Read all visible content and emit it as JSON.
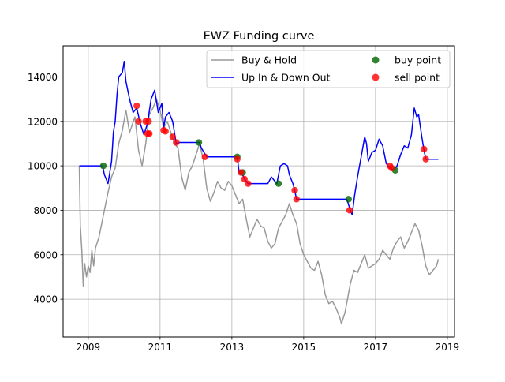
{
  "chart_data": {
    "type": "line",
    "title": "EWZ Funding curve",
    "xlabel": "",
    "ylabel": "",
    "xlim": [
      2008.3,
      2019.2
    ],
    "ylim": [
      2300,
      15400
    ],
    "xticks": [
      2009,
      2011,
      2013,
      2015,
      2017,
      2019
    ],
    "xtick_labels": [
      "2009",
      "2011",
      "2013",
      "2015",
      "2017",
      "2019"
    ],
    "yticks": [
      4000,
      6000,
      8000,
      10000,
      12000,
      14000
    ],
    "ytick_labels": [
      "4000",
      "6000",
      "8000",
      "10000",
      "12000",
      "14000"
    ],
    "grid": true,
    "legend_position": "top-right",
    "series": [
      {
        "name": "Buy & Hold",
        "kind": "line",
        "color": "#999999",
        "points": [
          [
            2008.75,
            10000
          ],
          [
            2008.78,
            7300
          ],
          [
            2008.82,
            6200
          ],
          [
            2008.86,
            4600
          ],
          [
            2008.9,
            5600
          ],
          [
            2008.95,
            5000
          ],
          [
            2009.0,
            5500
          ],
          [
            2009.05,
            5200
          ],
          [
            2009.1,
            6200
          ],
          [
            2009.15,
            5500
          ],
          [
            2009.2,
            6300
          ],
          [
            2009.3,
            6800
          ],
          [
            2009.45,
            8000
          ],
          [
            2009.55,
            8800
          ],
          [
            2009.65,
            9500
          ],
          [
            2009.75,
            9900
          ],
          [
            2009.85,
            11000
          ],
          [
            2009.95,
            11600
          ],
          [
            2010.05,
            12500
          ],
          [
            2010.15,
            11500
          ],
          [
            2010.3,
            12200
          ],
          [
            2010.4,
            10700
          ],
          [
            2010.5,
            10000
          ],
          [
            2010.6,
            11000
          ],
          [
            2010.7,
            12300
          ],
          [
            2010.8,
            12600
          ],
          [
            2010.9,
            13000
          ],
          [
            2011.0,
            12500
          ],
          [
            2011.1,
            11700
          ],
          [
            2011.2,
            12000
          ],
          [
            2011.3,
            11500
          ],
          [
            2011.4,
            11000
          ],
          [
            2011.5,
            10800
          ],
          [
            2011.6,
            9500
          ],
          [
            2011.7,
            8900
          ],
          [
            2011.8,
            9700
          ],
          [
            2011.9,
            10000
          ],
          [
            2012.0,
            10500
          ],
          [
            2012.1,
            11000
          ],
          [
            2012.2,
            10300
          ],
          [
            2012.3,
            9000
          ],
          [
            2012.4,
            8400
          ],
          [
            2012.5,
            8800
          ],
          [
            2012.6,
            9300
          ],
          [
            2012.7,
            9000
          ],
          [
            2012.8,
            8900
          ],
          [
            2012.9,
            9300
          ],
          [
            2013.0,
            9100
          ],
          [
            2013.1,
            8700
          ],
          [
            2013.2,
            8300
          ],
          [
            2013.3,
            8500
          ],
          [
            2013.4,
            7600
          ],
          [
            2013.5,
            6800
          ],
          [
            2013.6,
            7200
          ],
          [
            2013.7,
            7600
          ],
          [
            2013.8,
            7300
          ],
          [
            2013.9,
            7200
          ],
          [
            2014.0,
            6600
          ],
          [
            2014.1,
            6300
          ],
          [
            2014.2,
            6500
          ],
          [
            2014.3,
            7200
          ],
          [
            2014.4,
            7500
          ],
          [
            2014.5,
            7800
          ],
          [
            2014.6,
            8300
          ],
          [
            2014.7,
            7800
          ],
          [
            2014.8,
            7400
          ],
          [
            2014.9,
            6500
          ],
          [
            2015.0,
            6000
          ],
          [
            2015.1,
            5700
          ],
          [
            2015.2,
            5400
          ],
          [
            2015.3,
            5300
          ],
          [
            2015.4,
            5700
          ],
          [
            2015.5,
            5100
          ],
          [
            2015.6,
            4200
          ],
          [
            2015.7,
            3800
          ],
          [
            2015.8,
            3900
          ],
          [
            2015.9,
            3600
          ],
          [
            2016.0,
            3200
          ],
          [
            2016.05,
            2900
          ],
          [
            2016.15,
            3400
          ],
          [
            2016.3,
            4700
          ],
          [
            2016.4,
            5300
          ],
          [
            2016.5,
            5200
          ],
          [
            2016.6,
            5600
          ],
          [
            2016.7,
            6000
          ],
          [
            2016.8,
            5400
          ],
          [
            2016.9,
            5500
          ],
          [
            2017.0,
            5600
          ],
          [
            2017.1,
            5800
          ],
          [
            2017.2,
            6200
          ],
          [
            2017.3,
            6000
          ],
          [
            2017.4,
            5800
          ],
          [
            2017.5,
            6300
          ],
          [
            2017.6,
            6600
          ],
          [
            2017.7,
            6800
          ],
          [
            2017.8,
            6300
          ],
          [
            2017.9,
            6600
          ],
          [
            2018.0,
            7000
          ],
          [
            2018.1,
            7400
          ],
          [
            2018.2,
            7100
          ],
          [
            2018.3,
            6400
          ],
          [
            2018.4,
            5500
          ],
          [
            2018.5,
            5100
          ],
          [
            2018.6,
            5300
          ],
          [
            2018.7,
            5500
          ],
          [
            2018.75,
            5800
          ]
        ]
      },
      {
        "name": "Up In & Down Out",
        "kind": "line",
        "color": "#0000ff",
        "points": [
          [
            2008.75,
            10000
          ],
          [
            2009.4,
            10000
          ],
          [
            2009.45,
            9600
          ],
          [
            2009.55,
            9200
          ],
          [
            2009.65,
            10200
          ],
          [
            2009.7,
            11500
          ],
          [
            2009.75,
            12000
          ],
          [
            2009.8,
            13200
          ],
          [
            2009.85,
            14000
          ],
          [
            2009.95,
            14200
          ],
          [
            2010.0,
            14700
          ],
          [
            2010.05,
            13800
          ],
          [
            2010.15,
            13000
          ],
          [
            2010.25,
            12400
          ],
          [
            2010.35,
            12600
          ],
          [
            2010.45,
            11900
          ],
          [
            2010.55,
            11400
          ],
          [
            2010.65,
            11900
          ],
          [
            2010.75,
            13000
          ],
          [
            2010.85,
            13400
          ],
          [
            2010.95,
            12400
          ],
          [
            2011.05,
            12800
          ],
          [
            2011.1,
            11700
          ],
          [
            2011.15,
            12200
          ],
          [
            2011.25,
            12400
          ],
          [
            2011.35,
            12000
          ],
          [
            2011.45,
            11000
          ],
          [
            2011.55,
            11050
          ],
          [
            2012.1,
            11050
          ],
          [
            2012.15,
            10800
          ],
          [
            2012.3,
            10400
          ],
          [
            2013.15,
            10400
          ],
          [
            2013.2,
            9700
          ],
          [
            2013.3,
            9600
          ],
          [
            2013.35,
            9400
          ],
          [
            2013.45,
            9200
          ],
          [
            2013.6,
            9200
          ],
          [
            2014.0,
            9200
          ],
          [
            2014.1,
            9500
          ],
          [
            2014.25,
            9200
          ],
          [
            2014.35,
            10000
          ],
          [
            2014.45,
            10100
          ],
          [
            2014.55,
            10000
          ],
          [
            2014.6,
            9600
          ],
          [
            2014.7,
            9200
          ],
          [
            2014.75,
            8900
          ],
          [
            2014.8,
            8500
          ],
          [
            2016.2,
            8500
          ],
          [
            2016.3,
            8000
          ],
          [
            2016.35,
            7800
          ],
          [
            2016.42,
            8700
          ],
          [
            2016.5,
            9500
          ],
          [
            2016.6,
            10400
          ],
          [
            2016.7,
            11300
          ],
          [
            2016.75,
            11000
          ],
          [
            2016.8,
            10200
          ],
          [
            2016.9,
            10600
          ],
          [
            2017.0,
            10700
          ],
          [
            2017.1,
            11200
          ],
          [
            2017.2,
            10900
          ],
          [
            2017.3,
            10100
          ],
          [
            2017.4,
            9900
          ],
          [
            2017.5,
            9800
          ],
          [
            2017.6,
            10000
          ],
          [
            2017.7,
            10500
          ],
          [
            2017.8,
            10900
          ],
          [
            2017.9,
            10800
          ],
          [
            2018.0,
            11400
          ],
          [
            2018.08,
            12600
          ],
          [
            2018.15,
            12200
          ],
          [
            2018.2,
            12300
          ],
          [
            2018.3,
            11200
          ],
          [
            2018.35,
            10700
          ],
          [
            2018.4,
            10300
          ],
          [
            2018.75,
            10300
          ]
        ]
      },
      {
        "name": "buy point",
        "kind": "scatter",
        "color": "#006400",
        "points": [
          [
            2009.42,
            10000
          ],
          [
            2012.08,
            11050
          ],
          [
            2013.15,
            10400
          ],
          [
            2013.3,
            9700
          ],
          [
            2014.3,
            9200
          ],
          [
            2016.25,
            8500
          ],
          [
            2017.55,
            9800
          ]
        ]
      },
      {
        "name": "sell point",
        "kind": "scatter",
        "color": "#ff0000",
        "points": [
          [
            2010.35,
            12700
          ],
          [
            2010.4,
            12000
          ],
          [
            2010.6,
            12000
          ],
          [
            2010.68,
            12000
          ],
          [
            2010.65,
            11450
          ],
          [
            2010.7,
            11450
          ],
          [
            2011.1,
            11600
          ],
          [
            2011.15,
            11550
          ],
          [
            2011.35,
            11300
          ],
          [
            2011.45,
            11050
          ],
          [
            2012.25,
            10400
          ],
          [
            2013.15,
            10300
          ],
          [
            2013.25,
            9700
          ],
          [
            2013.35,
            9400
          ],
          [
            2013.45,
            9200
          ],
          [
            2014.75,
            8900
          ],
          [
            2014.8,
            8500
          ],
          [
            2016.28,
            8000
          ],
          [
            2017.4,
            10000
          ],
          [
            2017.45,
            9900
          ],
          [
            2018.35,
            10750
          ],
          [
            2018.4,
            10300
          ]
        ]
      }
    ]
  }
}
